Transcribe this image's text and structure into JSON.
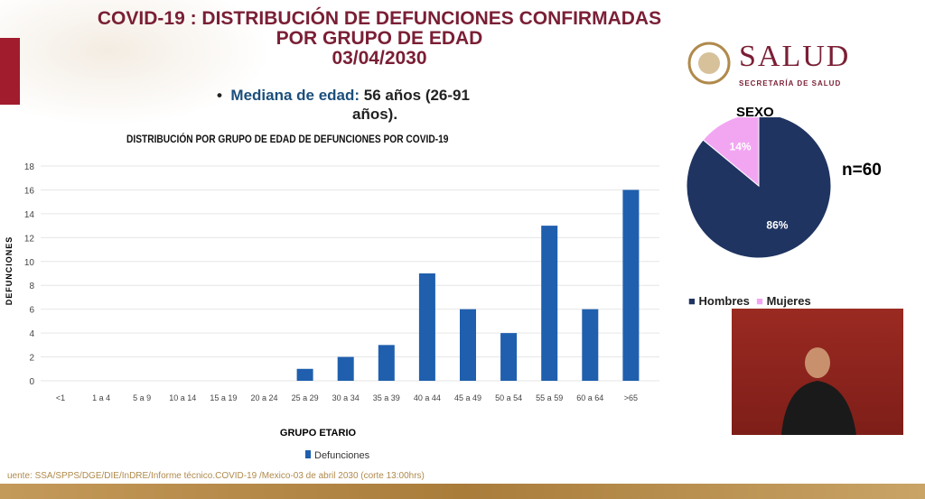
{
  "header": {
    "title_lines": [
      "COVID-19 : DISTRIBUCIÓN DE DEFUNCIONES CONFIRMADAS",
      "POR GRUPO DE EDAD",
      "03/04/2030"
    ],
    "median_label": "Mediana de edad:",
    "median_value": "56 años (26-91",
    "median_value2": "años)."
  },
  "brand": {
    "name": "SALUD",
    "subtitle": "SECRETARÍA DE SALUD"
  },
  "chart_data": [
    {
      "type": "bar",
      "title": "DISTRIBUCIÓN POR GRUPO DE EDAD DE DEFUNCIONES POR COVID-19",
      "xlabel": "GRUPO ETARIO",
      "ylabel": "DEFUNCIONES",
      "categories": [
        "<1",
        "1 a 4",
        "5 a 9",
        "10 a 14",
        "15 a 19",
        "20 a 24",
        "25 a 29",
        "30 a 34",
        "35 a 39",
        "40 a 44",
        "45 a 49",
        "50 a 54",
        "55 a 59",
        "60 a 64",
        ">65"
      ],
      "values": [
        0,
        0,
        0,
        0,
        0,
        0,
        1,
        2,
        3,
        9,
        6,
        4,
        13,
        6,
        16
      ],
      "ylim": [
        0,
        18
      ],
      "yticks": [
        0,
        2,
        4,
        6,
        8,
        10,
        12,
        14,
        16,
        18
      ],
      "grid": true,
      "legend": "Defunciones",
      "legend_placement": "bottom",
      "color": "#1f5fae"
    },
    {
      "type": "pie",
      "title": "SEXO",
      "annotation": "n=60",
      "slices": [
        {
          "label": "Hombres",
          "value": 86,
          "text": "86%",
          "color": "#1f3461"
        },
        {
          "label": "Mujeres",
          "value": 14,
          "text": "14%",
          "color": "#f2a6f2"
        }
      ],
      "legend_placement": "bottom"
    }
  ],
  "footer": {
    "source": "uente: SSA/SPPS/DGE/DIE/InDRE/Informe técnico.COVID-19 /Mexico-03 de abril 2030 (corte 13:00hrs)"
  }
}
